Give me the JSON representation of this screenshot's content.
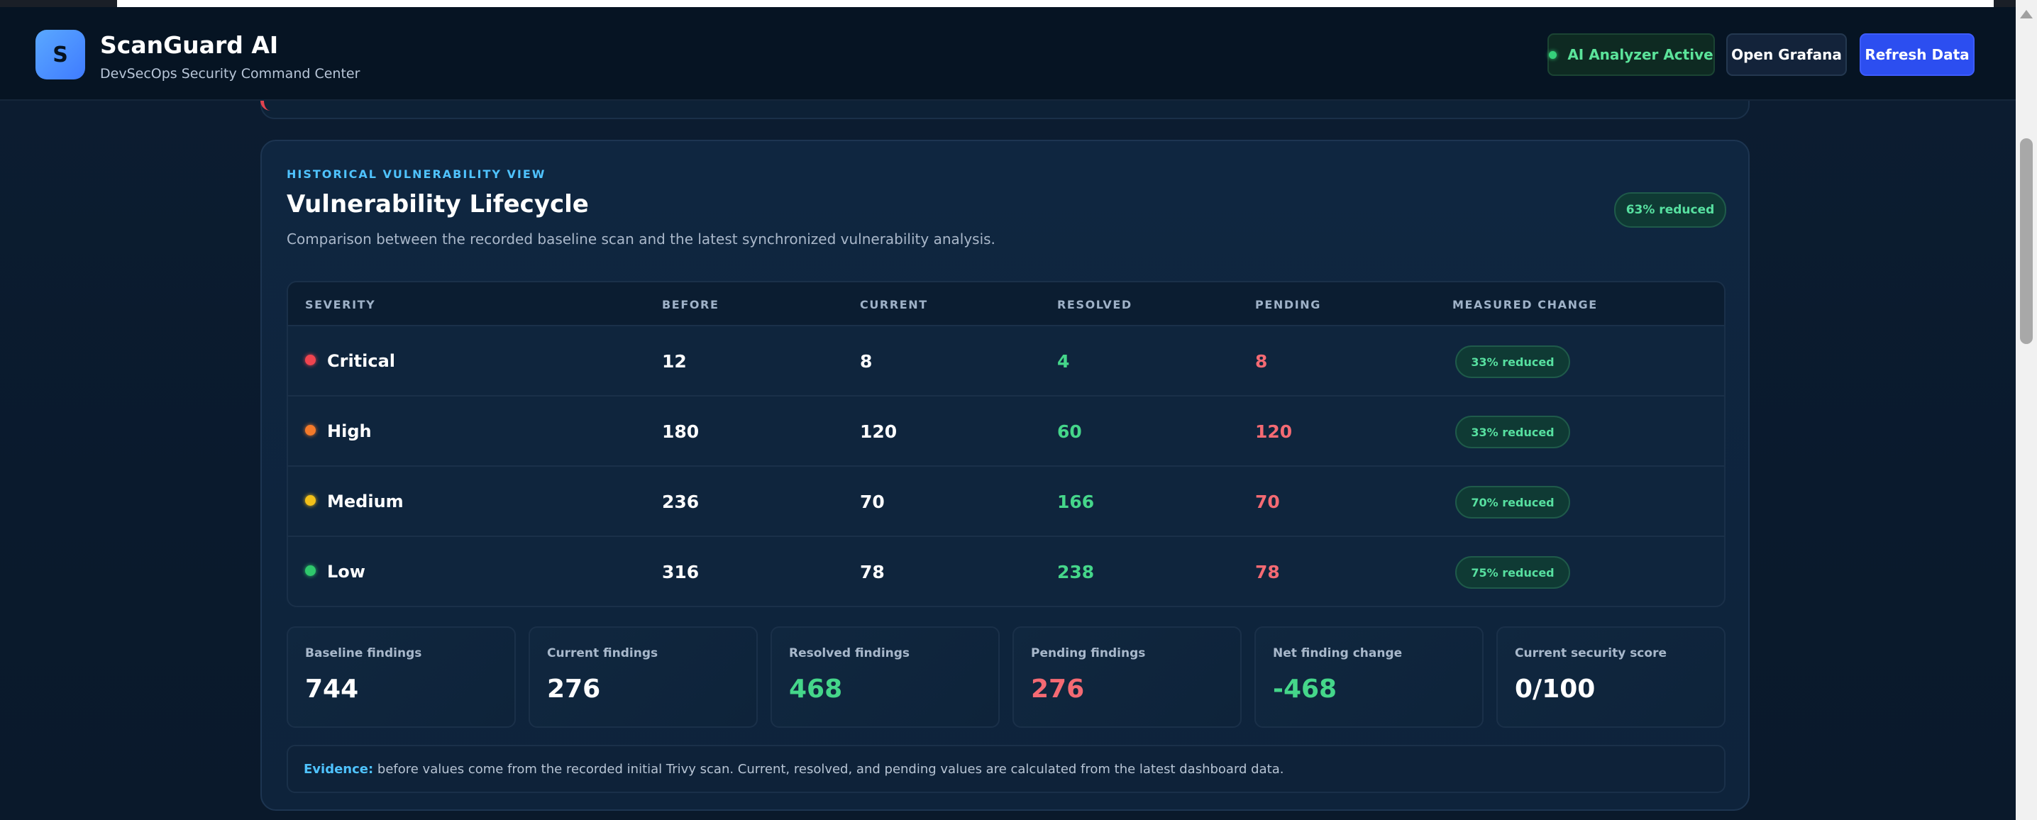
{
  "header": {
    "logo_letter": "S",
    "title": "ScanGuard AI",
    "subtitle": "DevSecOps Security Command Center",
    "ai_status": "AI Analyzer Active",
    "grafana_label": "Open Grafana",
    "refresh_label": "Refresh Data"
  },
  "card": {
    "eyebrow": "HISTORICAL VULNERABILITY VIEW",
    "title": "Vulnerability Lifecycle",
    "description": "Comparison between the recorded baseline scan and the latest synchronized vulnerability analysis.",
    "overall_badge": "63% reduced"
  },
  "table": {
    "headers": [
      "SEVERITY",
      "BEFORE",
      "CURRENT",
      "RESOLVED",
      "PENDING",
      "MEASURED CHANGE"
    ],
    "rows": [
      {
        "severity": "Critical",
        "color": "#f0444f",
        "before": "12",
        "current": "8",
        "resolved": "4",
        "pending": "8",
        "change": "33% reduced"
      },
      {
        "severity": "High",
        "color": "#f47a2a",
        "before": "180",
        "current": "120",
        "resolved": "60",
        "pending": "120",
        "change": "33% reduced"
      },
      {
        "severity": "Medium",
        "color": "#f2c019",
        "before": "236",
        "current": "70",
        "resolved": "166",
        "pending": "70",
        "change": "70% reduced"
      },
      {
        "severity": "Low",
        "color": "#2fc86c",
        "before": "316",
        "current": "78",
        "resolved": "238",
        "pending": "78",
        "change": "75% reduced"
      }
    ]
  },
  "stats": [
    {
      "label": "Baseline findings",
      "value": "744"
    },
    {
      "label": "Current findings",
      "value": "276"
    },
    {
      "label": "Resolved findings",
      "value": "468"
    },
    {
      "label": "Pending findings",
      "value": "276"
    },
    {
      "label": "Net finding change",
      "value": "-468"
    },
    {
      "label": "Current security score",
      "value": "0/100"
    }
  ],
  "evidence": {
    "key": "Evidence:",
    "text": " before values come from the recorded initial Trivy scan. Current, resolved, and pending values are calculated from the latest dashboard data."
  },
  "colors": {
    "accent": "#4fc3ff",
    "primary_button": "#2c4ef0",
    "positive": "#45d68a",
    "negative": "#f46a73"
  }
}
